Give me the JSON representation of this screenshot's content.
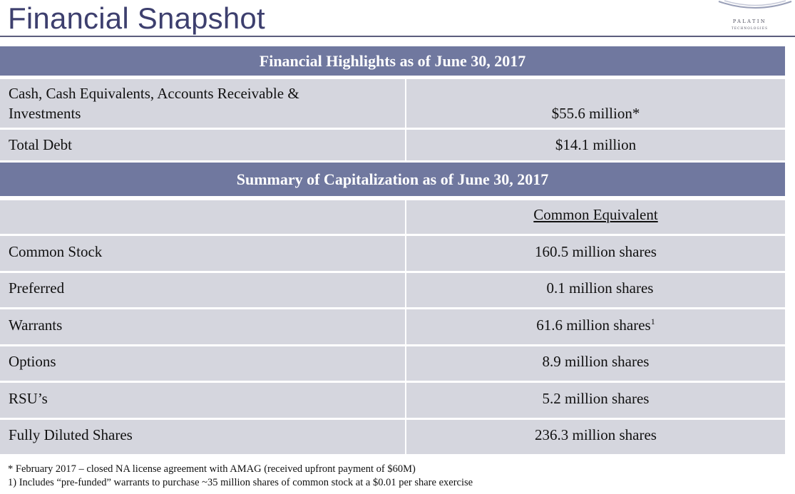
{
  "page": {
    "title": "Financial Snapshot"
  },
  "logo": {
    "name": "PALATIN",
    "subtitle": "TECHNOLOGIES"
  },
  "highlights": {
    "header": "Financial Highlights as of June 30, 2017",
    "rows": [
      {
        "label_line1": "Cash, Cash Equivalents, Accounts Receivable &",
        "label_line2": "Investments",
        "value": "$55.6 million*"
      },
      {
        "label": "Total Debt",
        "value": "$14.1 million"
      }
    ]
  },
  "capitalization": {
    "header": "Summary of Capitalization as of  June 30, 2017",
    "column_header": "Common Equivalent",
    "rows": [
      {
        "label": "Common Stock",
        "value": "160.5 million shares"
      },
      {
        "label": "Preferred",
        "value": "0.1 million shares"
      },
      {
        "label": "Warrants",
        "value": "61.6 million shares",
        "footnote_mark": "1"
      },
      {
        "label": "Options",
        "value": "8.9 million shares"
      },
      {
        "label": "RSU’s",
        "value": "5.2 million shares"
      },
      {
        "label": "Fully Diluted Shares",
        "value": "236.3 million shares"
      }
    ]
  },
  "footnotes": [
    "*   February 2017 – closed NA license agreement with AMAG (received upfront payment of $60M)",
    "1) Includes “pre-funded” warrants to purchase ~35 million shares of  common stock at a $0.01 per share exercise"
  ],
  "colors": {
    "header_bg": "#70789f",
    "cell_bg": "#d5d6de",
    "title": "#3d3f6e"
  }
}
